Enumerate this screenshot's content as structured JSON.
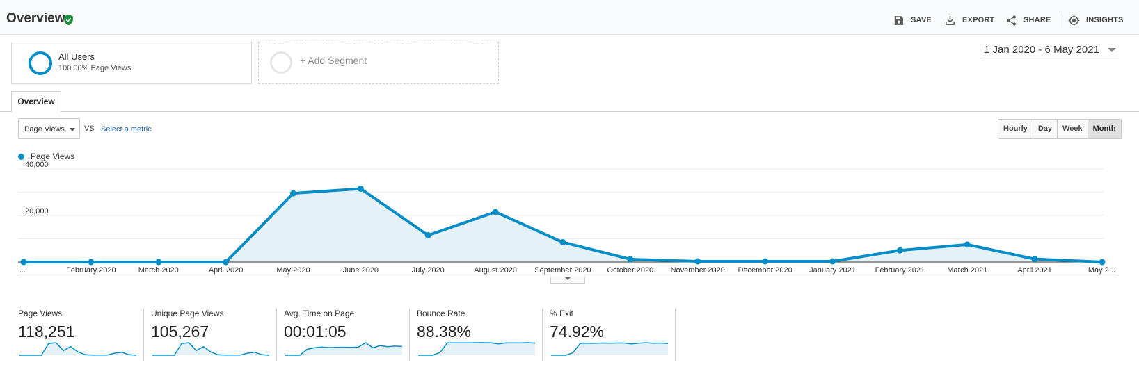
{
  "header": {
    "title": "Overview",
    "actions": {
      "save": "SAVE",
      "export": "EXPORT",
      "share": "SHARE",
      "insights": "INSIGHTS"
    }
  },
  "segments": {
    "active": {
      "name": "All Users",
      "sub": "100.00% Page Views"
    },
    "add_label": "+ Add Segment"
  },
  "date_range": "1 Jan 2020 - 6 May 2021",
  "tabs": {
    "overview": "Overview"
  },
  "metric_controls": {
    "selected": "Page Views",
    "vs": "VS",
    "select_metric": "Select a metric"
  },
  "granularity": {
    "hourly": "Hourly",
    "day": "Day",
    "week": "Week",
    "month": "Month",
    "active": "Month"
  },
  "colors": {
    "accent": "#058dc7",
    "fill": "#e4f1f7",
    "verified": "#1e8e3e"
  },
  "icons": [
    "verified-check-icon",
    "save-icon",
    "export-icon",
    "share-icon",
    "insights-icon",
    "caret-down-icon"
  ],
  "chart_data": {
    "type": "area",
    "series": [
      {
        "name": "Page Views",
        "values": [
          0,
          0,
          0,
          0,
          29500,
          31500,
          11500,
          21500,
          8500,
          1200,
          300,
          300,
          300,
          5000,
          7500,
          1300,
          0
        ]
      }
    ],
    "categories": [
      "...",
      "February 2020",
      "March 2020",
      "April 2020",
      "May 2020",
      "June 2020",
      "July 2020",
      "August 2020",
      "September 2020",
      "October 2020",
      "November 2020",
      "December 2020",
      "January 2021",
      "February 2021",
      "March 2021",
      "April 2021",
      "May 2..."
    ],
    "yticks": [
      "20,000",
      "40,000"
    ],
    "ylim": [
      0,
      40000
    ],
    "grid": true,
    "legend": "top-left"
  },
  "scorecards": [
    {
      "label": "Page Views",
      "value": "118,251",
      "spark": [
        0,
        0,
        0,
        0,
        29500,
        31500,
        11500,
        21500,
        8500,
        1200,
        300,
        300,
        300,
        5000,
        7500,
        1300,
        0
      ]
    },
    {
      "label": "Unique Page Views",
      "value": "105,267",
      "spark": [
        0,
        0,
        0,
        0,
        26000,
        28000,
        10500,
        19000,
        7500,
        1000,
        300,
        300,
        300,
        4500,
        6500,
        1100,
        0
      ]
    },
    {
      "label": "Avg. Time on Page",
      "value": "00:01:05",
      "spark": [
        0,
        0,
        0,
        40,
        50,
        55,
        52,
        53,
        54,
        53,
        55,
        85,
        50,
        65,
        58,
        62,
        60
      ]
    },
    {
      "label": "Bounce Rate",
      "value": "88.38%",
      "spark": [
        0,
        0,
        0,
        20,
        88,
        88,
        88,
        88,
        89,
        89,
        88,
        80,
        87,
        88,
        87,
        89,
        86
      ]
    },
    {
      "label": "% Exit",
      "value": "74.92%",
      "spark": [
        0,
        0,
        0,
        15,
        74,
        75,
        74,
        76,
        75,
        76,
        76,
        70,
        75,
        78,
        74,
        76,
        73
      ]
    }
  ]
}
